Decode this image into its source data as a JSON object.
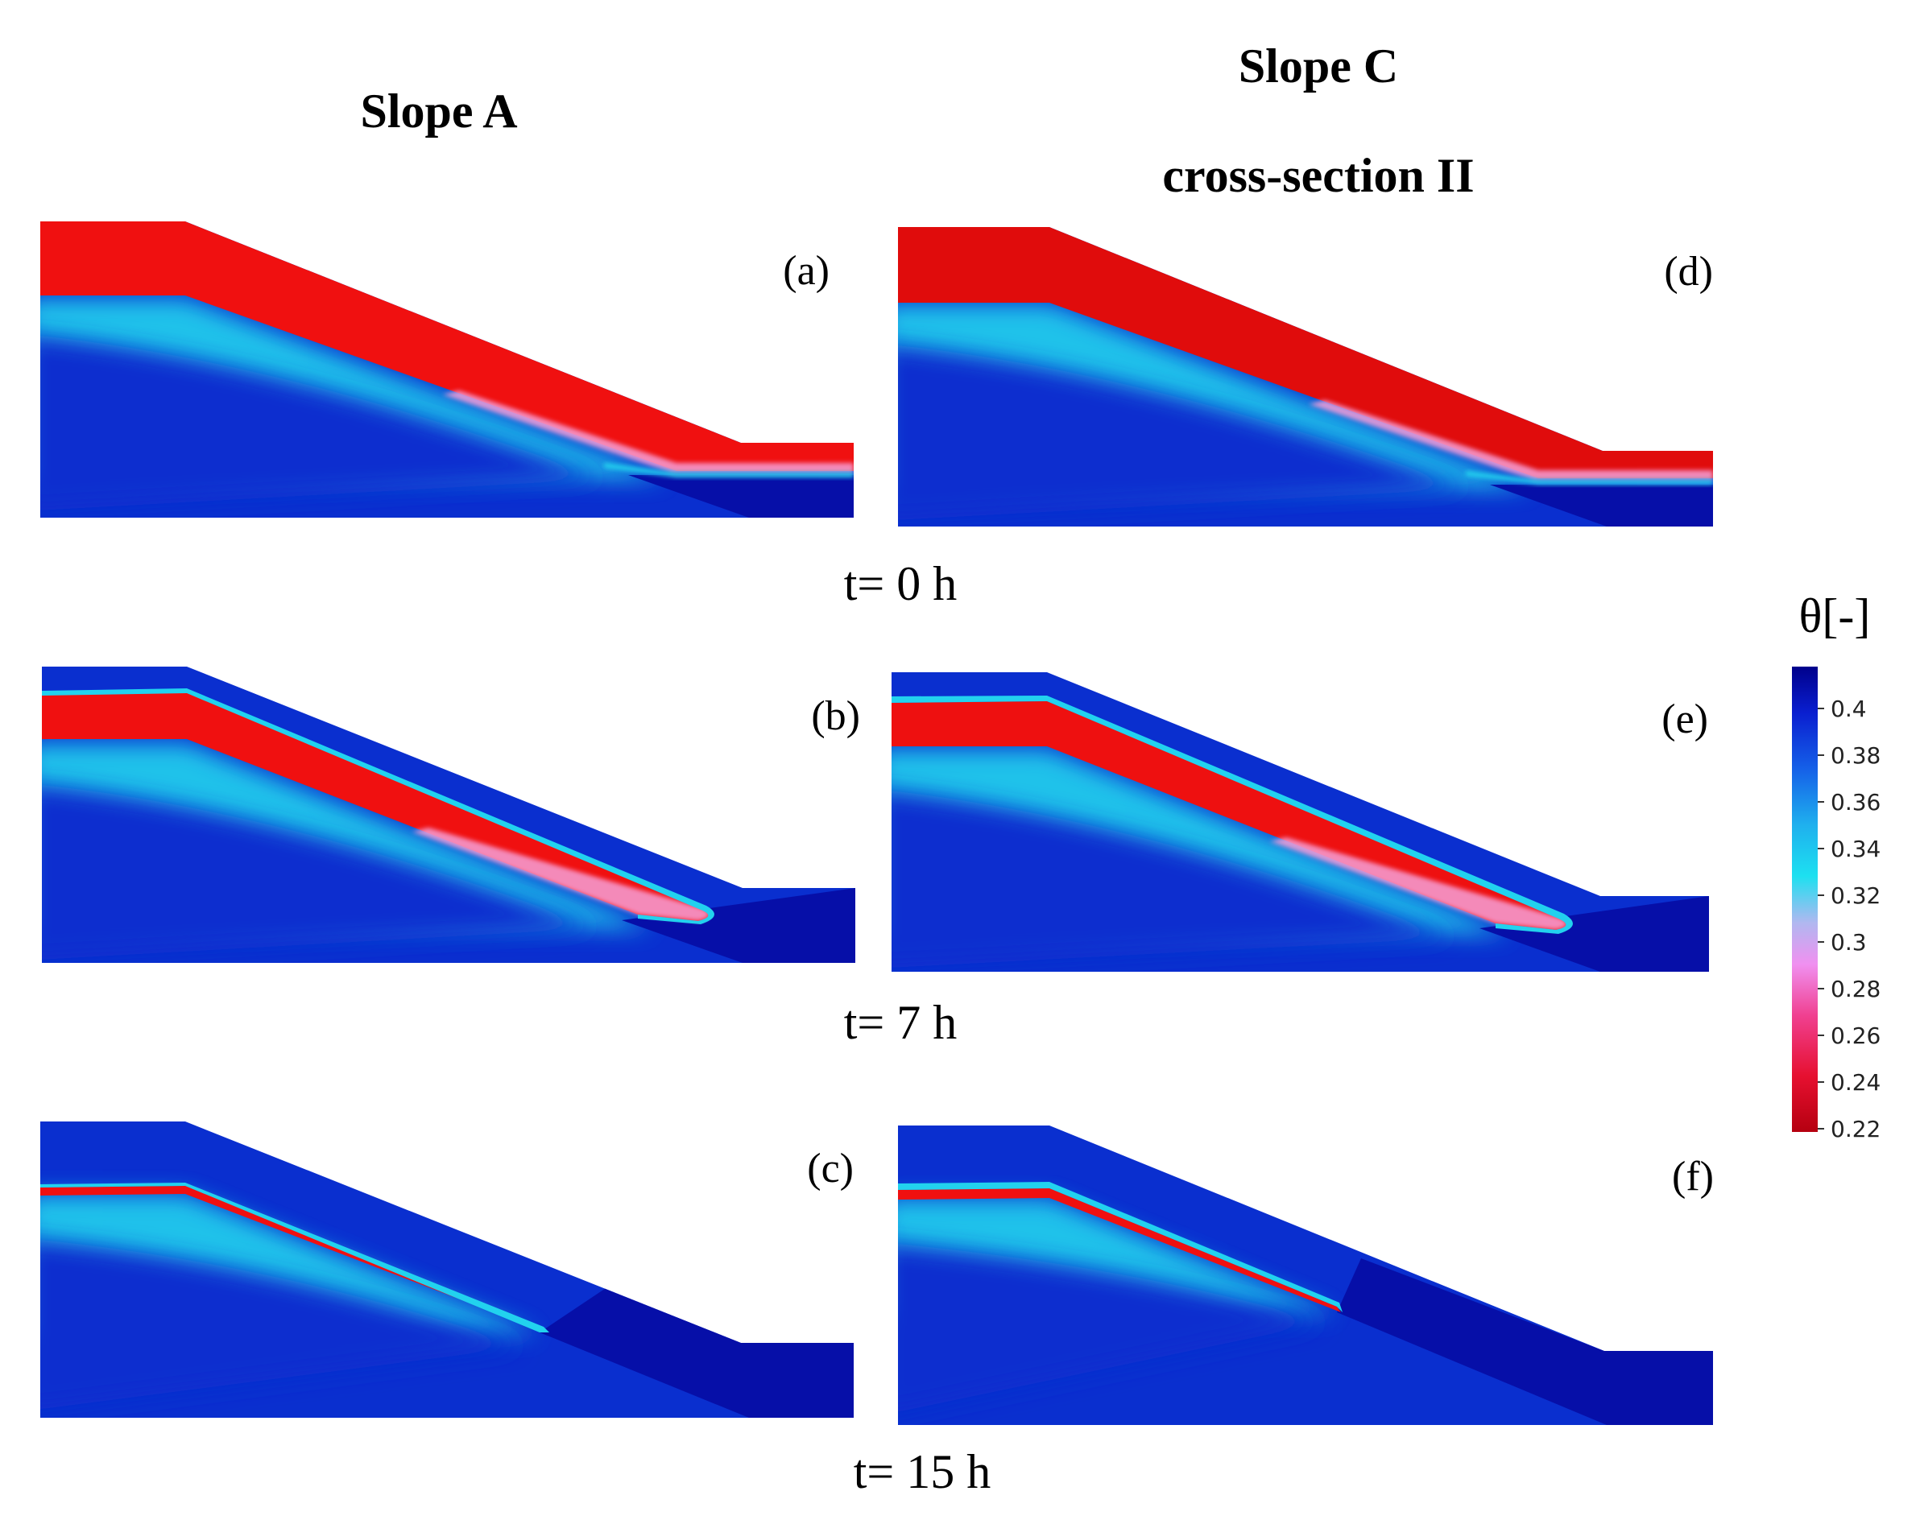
{
  "titles": {
    "slope_a": "Slope A",
    "slope_c": "Slope C",
    "slope_c_sub": "cross-section II"
  },
  "time_labels": [
    "t= 0 h",
    "t= 7 h",
    "t= 15 h"
  ],
  "panels": [
    {
      "id": "a",
      "label": "(a)",
      "slope": "A",
      "time_h": 0
    },
    {
      "id": "d",
      "label": "(d)",
      "slope": "C",
      "time_h": 0
    },
    {
      "id": "b",
      "label": "(b)",
      "slope": "A",
      "time_h": 7
    },
    {
      "id": "e",
      "label": "(e)",
      "slope": "C",
      "time_h": 7
    },
    {
      "id": "c",
      "label": "(c)",
      "slope": "A",
      "time_h": 15
    },
    {
      "id": "f",
      "label": "(f)",
      "slope": "C",
      "time_h": 15
    }
  ],
  "colorbar": {
    "title": "θ[-]",
    "ticks": [
      "0.4",
      "0.38",
      "0.36",
      "0.34",
      "0.32",
      "0.3",
      "0.28",
      "0.26",
      "0.24",
      "0.22"
    ],
    "colors": [
      "#00008b",
      "#0a1fd0",
      "#1560e8",
      "#1fb0ee",
      "#1de0f0",
      "#b0b8f0",
      "#f090f0",
      "#f04090",
      "#e61030",
      "#b50010"
    ]
  },
  "colors": {
    "deep_blue": "#0a2fcf",
    "darker_blue": "#060fa8",
    "navy": "#0a0b8a",
    "cyan": "#1fd4ec",
    "red": "#f01010",
    "pink": "#f4a0d8"
  }
}
